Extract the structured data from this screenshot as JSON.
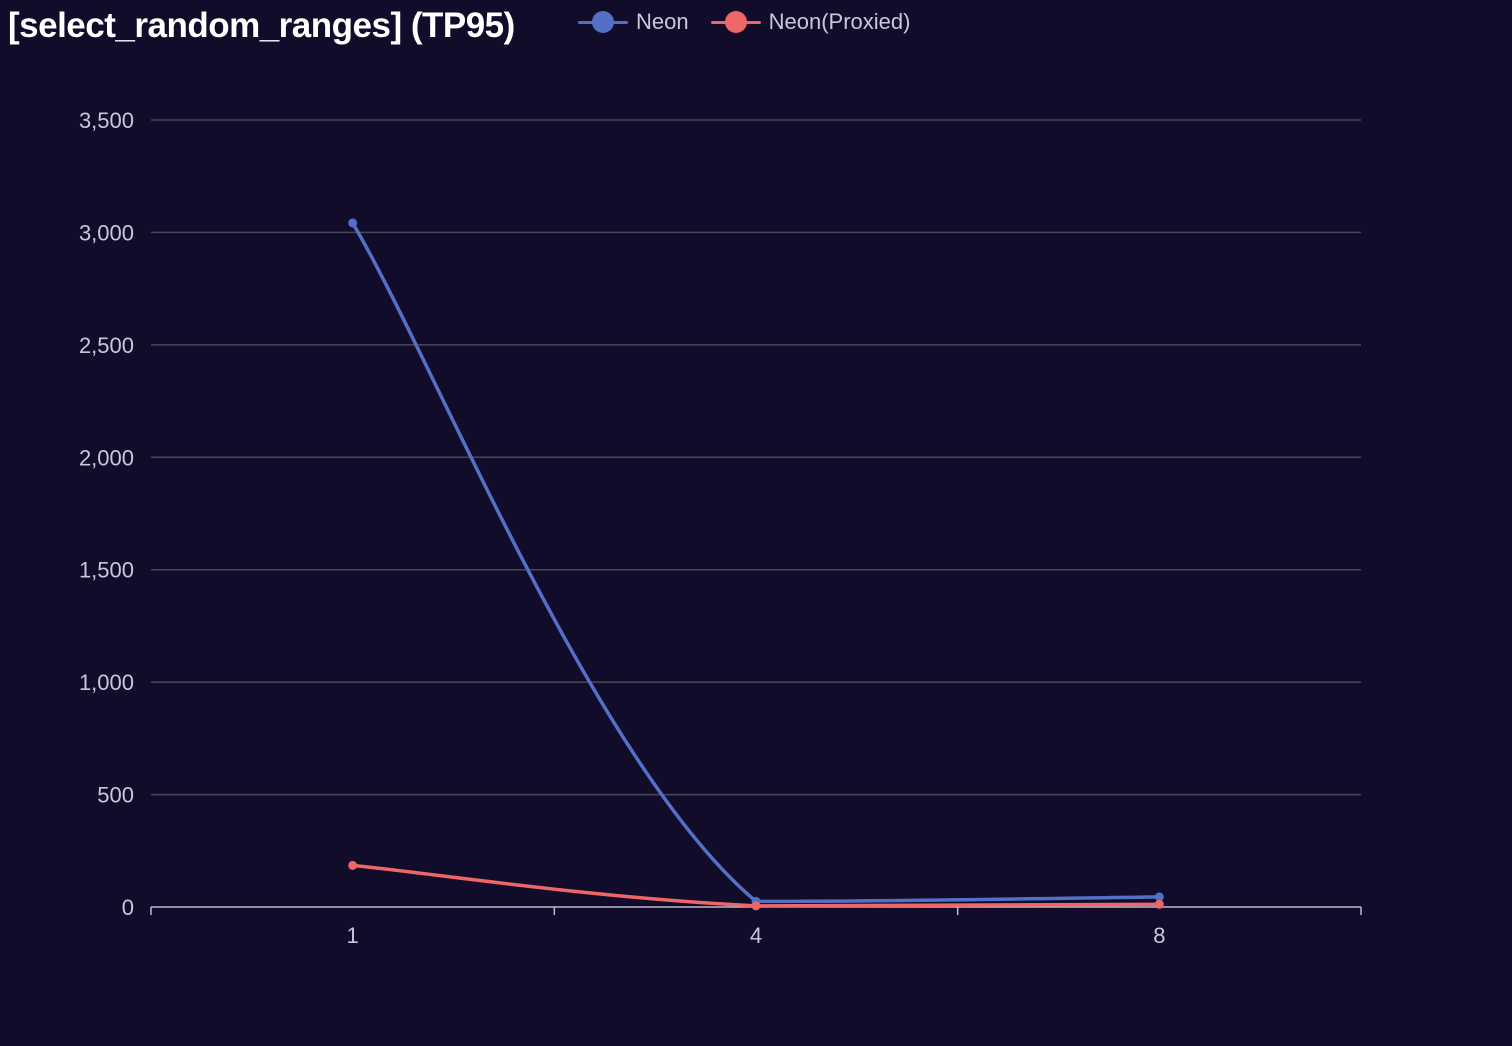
{
  "chart_data": {
    "type": "line",
    "title": "[select_random_ranges] (TP95)",
    "categories": [
      "1",
      "4",
      "8"
    ],
    "series": [
      {
        "name": "Neon",
        "values": [
          3042,
          25,
          45
        ],
        "color": "#5470c6"
      },
      {
        "name": "Neon(Proxied)",
        "values": [
          185,
          5,
          12
        ],
        "color": "#ee6666"
      }
    ],
    "ylim": [
      0,
      3500
    ],
    "y_ticks": [
      0,
      500,
      1000,
      1500,
      2000,
      2500,
      3000,
      3500
    ],
    "y_tick_labels": [
      "0",
      "500",
      "1,000",
      "1,500",
      "2,000",
      "2,500",
      "3,000",
      "3,500"
    ],
    "xlabel": "",
    "ylabel": "",
    "grid": true,
    "smooth": true,
    "legend_position": "top",
    "background": "#100c2a",
    "grid_color": "#484753",
    "axis_color": "#b9b8ce"
  }
}
